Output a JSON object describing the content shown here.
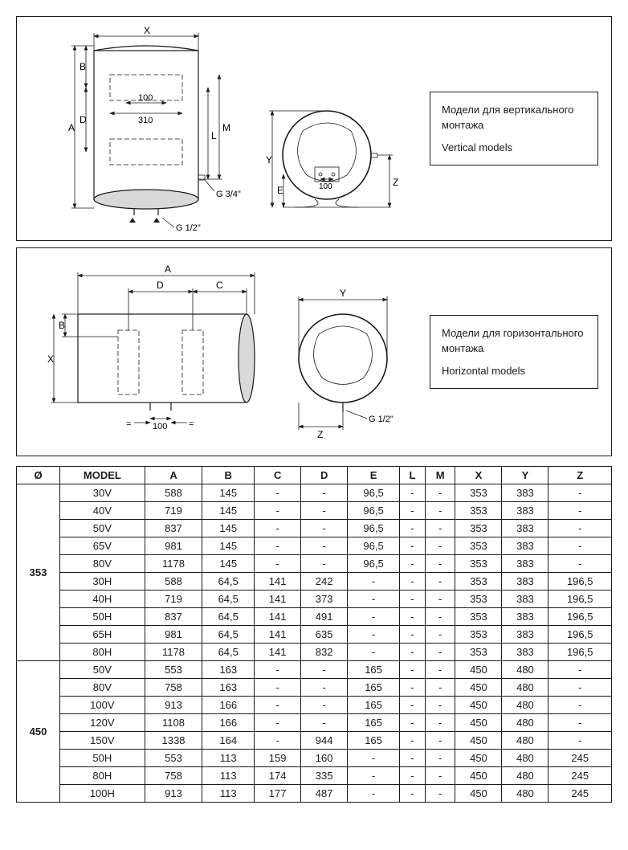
{
  "panels": {
    "top": {
      "label_ru": "Модели для вертикального монтажа",
      "label_en": "Vertical models",
      "dims": {
        "g34": "G  3/4\"",
        "g12": "G  1/2\"",
        "d100": "100",
        "d310": "310",
        "d100b": "100",
        "X": "X",
        "B": "B",
        "A": "A",
        "D": "D",
        "L": "L",
        "M": "M",
        "Y": "Y",
        "E": "E",
        "Z": "Z"
      }
    },
    "bottom": {
      "label_ru": "Модели для горизонтального монтажа",
      "label_en": "Horizontal models",
      "dims": {
        "g12": "G  1/2\"",
        "d100": "100",
        "A": "A",
        "D": "D",
        "C": "C",
        "B": "B",
        "X": "X",
        "Y": "Y",
        "Z": "Z",
        "eq1": "=",
        "eq2": "="
      }
    }
  },
  "table": {
    "headers": [
      "Ø",
      "MODEL",
      "A",
      "B",
      "C",
      "D",
      "E",
      "L",
      "M",
      "X",
      "Y",
      "Z"
    ],
    "groups": [
      {
        "diam": "353",
        "rows": [
          [
            "30V",
            "588",
            "145",
            "-",
            "-",
            "96,5",
            "-",
            "-",
            "353",
            "383",
            "-"
          ],
          [
            "40V",
            "719",
            "145",
            "-",
            "-",
            "96,5",
            "-",
            "-",
            "353",
            "383",
            "-"
          ],
          [
            "50V",
            "837",
            "145",
            "-",
            "-",
            "96,5",
            "-",
            "-",
            "353",
            "383",
            "-"
          ],
          [
            "65V",
            "981",
            "145",
            "-",
            "-",
            "96,5",
            "-",
            "-",
            "353",
            "383",
            "-"
          ],
          [
            "80V",
            "1178",
            "145",
            "-",
            "-",
            "96,5",
            "-",
            "-",
            "353",
            "383",
            "-"
          ],
          [
            "30H",
            "588",
            "64,5",
            "141",
            "242",
            "-",
            "-",
            "-",
            "353",
            "383",
            "196,5"
          ],
          [
            "40H",
            "719",
            "64,5",
            "141",
            "373",
            "-",
            "-",
            "-",
            "353",
            "383",
            "196,5"
          ],
          [
            "50H",
            "837",
            "64,5",
            "141",
            "491",
            "-",
            "-",
            "-",
            "353",
            "383",
            "196,5"
          ],
          [
            "65H",
            "981",
            "64,5",
            "141",
            "635",
            "-",
            "-",
            "-",
            "353",
            "383",
            "196,5"
          ],
          [
            "80H",
            "1178",
            "64,5",
            "141",
            "832",
            "-",
            "-",
            "-",
            "353",
            "383",
            "196,5"
          ]
        ]
      },
      {
        "diam": "450",
        "rows": [
          [
            "50V",
            "553",
            "163",
            "-",
            "-",
            "165",
            "-",
            "-",
            "450",
            "480",
            "-"
          ],
          [
            "80V",
            "758",
            "163",
            "-",
            "-",
            "165",
            "-",
            "-",
            "450",
            "480",
            "-"
          ],
          [
            "100V",
            "913",
            "166",
            "-",
            "-",
            "165",
            "-",
            "-",
            "450",
            "480",
            "-"
          ],
          [
            "120V",
            "1108",
            "166",
            "-",
            "-",
            "165",
            "-",
            "-",
            "450",
            "480",
            "-"
          ],
          [
            "150V",
            "1338",
            "164",
            "-",
            "944",
            "165",
            "-",
            "-",
            "450",
            "480",
            "-"
          ],
          [
            "50H",
            "553",
            "113",
            "159",
            "160",
            "-",
            "-",
            "-",
            "450",
            "480",
            "245"
          ],
          [
            "80H",
            "758",
            "113",
            "174",
            "335",
            "-",
            "-",
            "-",
            "450",
            "480",
            "245"
          ],
          [
            "100H",
            "913",
            "113",
            "177",
            "487",
            "-",
            "-",
            "-",
            "450",
            "480",
            "245"
          ]
        ]
      }
    ]
  },
  "colors": {
    "line": "#1a1a1a",
    "fill_grey": "#d9d9d9",
    "bg": "#ffffff"
  }
}
